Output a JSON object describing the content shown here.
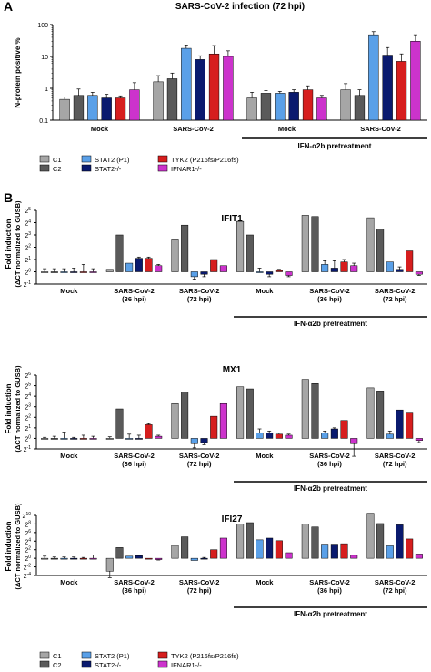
{
  "panels": {
    "A": "A",
    "B": "B"
  },
  "colors": {
    "C1": "#a6a6a6",
    "C2": "#5a5a5a",
    "STAT2 (P1)": "#5aa0e8",
    "STAT2-/-": "#0a1a6e",
    "TYK2 (P216fs/P216fs)": "#d61e1e",
    "IFNAR1-/-": "#cc33cc"
  },
  "legend": [
    "C1",
    "C2",
    "STAT2 (P1)",
    "STAT2-/-",
    "TYK2 (P216fs/P216fs)",
    "IFNAR1-/-"
  ],
  "chart_data": [
    {
      "type": "bar",
      "scale": "log10",
      "title": "SARS-CoV-2 infection (72 hpi)",
      "ylabel": "N-protein positive %",
      "yticks": [
        {
          "v": 0.1,
          "t": "0.1"
        },
        {
          "v": 1,
          "t": "1"
        },
        {
          "v": 10,
          "t": "10"
        },
        {
          "v": 100,
          "t": "100"
        }
      ],
      "ylim": [
        0.1,
        100
      ],
      "groups": [
        "Mock",
        "SARS-CoV-2",
        "Mock",
        "SARS-CoV-2"
      ],
      "pretreatment": "IFN-α2b pretreatment",
      "series": [
        {
          "name": "C1",
          "values": [
            0.45,
            1.6,
            0.5,
            0.9
          ],
          "errors": [
            0.08,
            0.9,
            0.25,
            0.5
          ]
        },
        {
          "name": "C2",
          "values": [
            0.6,
            2.0,
            0.7,
            0.6
          ],
          "errors": [
            0.35,
            1.0,
            0.15,
            0.3
          ]
        },
        {
          "name": "STAT2 (P1)",
          "values": [
            0.6,
            18,
            0.7,
            48
          ],
          "errors": [
            0.15,
            5,
            0.1,
            12
          ]
        },
        {
          "name": "STAT2-/-",
          "values": [
            0.5,
            8,
            0.75,
            11
          ],
          "errors": [
            0.15,
            2.5,
            0.15,
            8
          ]
        },
        {
          "name": "TYK2 (P216fs/P216fs)",
          "values": [
            0.5,
            12,
            0.9,
            7
          ],
          "errors": [
            0.08,
            10,
            0.3,
            5
          ]
        },
        {
          "name": "IFNAR1-/-",
          "values": [
            0.9,
            10,
            0.5,
            30
          ],
          "errors": [
            0.6,
            5,
            0.1,
            18
          ]
        }
      ]
    },
    {
      "type": "bar",
      "scale": "log2",
      "title": "IFIT1",
      "ylabel": "Fold induction (ΔCT normalized to GUSB)",
      "ylim": [
        -1,
        5
      ],
      "groups": [
        "Mock",
        "SARS-CoV-2 (36 hpi)",
        "SARS-CoV-2 (72 hpi)",
        "Mock",
        "SARS-CoV-2 (36 hpi)",
        "SARS-CoV-2 (72 hpi)"
      ],
      "pretreatment": "IFN-α2b pretreatment",
      "series": [
        {
          "name": "C1",
          "values": [
            0,
            0.2,
            2.6,
            4.1,
            4.6,
            4.4
          ],
          "errors": [
            0.25,
            0,
            0,
            0,
            0,
            0
          ]
        },
        {
          "name": "C2",
          "values": [
            0,
            3.0,
            3.8,
            3.0,
            4.5,
            3.5
          ],
          "errors": [
            0.25,
            0,
            0,
            0,
            0,
            0
          ]
        },
        {
          "name": "STAT2 (P1)",
          "values": [
            0,
            0.7,
            -0.4,
            0,
            0.6,
            0.8
          ],
          "errors": [
            0.25,
            0,
            0.2,
            0.3,
            0.3,
            0
          ]
        },
        {
          "name": "STAT2-/-",
          "values": [
            0,
            1.1,
            -0.2,
            -0.2,
            0.3,
            0.2
          ],
          "errors": [
            0.3,
            0.1,
            0.2,
            0.2,
            0.6,
            0.2
          ]
        },
        {
          "name": "TYK2 (P216fs/P216fs)",
          "values": [
            0,
            1.1,
            1.0,
            0.1,
            0.8,
            1.7
          ],
          "errors": [
            0.6,
            0.1,
            0,
            0.1,
            0.2,
            0
          ]
        },
        {
          "name": "IFNAR1-/-",
          "values": [
            0,
            0.5,
            0.5,
            -0.3,
            0.5,
            -0.2
          ],
          "errors": [
            0.25,
            0.1,
            0,
            0.1,
            0.2,
            0.1
          ]
        }
      ]
    },
    {
      "type": "bar",
      "scale": "log2",
      "title": "MX1",
      "ylabel": "Fold induction (ΔCT normalized to GUSB)",
      "ylim": [
        -1,
        6
      ],
      "groups": [
        "Mock",
        "SARS-CoV-2 (36 hpi)",
        "SARS-CoV-2 (72 hpi)",
        "Mock",
        "SARS-CoV-2 (36 hpi)",
        "SARS-CoV-2 (72 hpi)"
      ],
      "pretreatment": "IFN-α2b pretreatment",
      "series": [
        {
          "name": "C1",
          "values": [
            0,
            0,
            3.3,
            4.9,
            5.6,
            4.8
          ],
          "errors": [
            0.1,
            0.15,
            0,
            0,
            0,
            0
          ]
        },
        {
          "name": "C2",
          "values": [
            0,
            2.8,
            4.4,
            4.7,
            5.2,
            4.5
          ],
          "errors": [
            0.2,
            0,
            0,
            0,
            0,
            0
          ]
        },
        {
          "name": "STAT2 (P1)",
          "values": [
            0,
            0,
            -0.5,
            0.5,
            0.5,
            0.4
          ],
          "errors": [
            0.6,
            0.4,
            0.4,
            0.4,
            0.2,
            0.3
          ]
        },
        {
          "name": "STAT2-/-",
          "values": [
            0,
            0,
            -0.4,
            0.5,
            0.9,
            2.7
          ],
          "errors": [
            0.1,
            0.3,
            0.2,
            0.2,
            0.1,
            0
          ]
        },
        {
          "name": "TYK2 (P216fs/P216fs)",
          "values": [
            0,
            1.3,
            2.1,
            0.4,
            1.7,
            2.4
          ],
          "errors": [
            0.3,
            0.1,
            0,
            0.1,
            0,
            0
          ]
        },
        {
          "name": "IFNAR1-/-",
          "values": [
            0,
            0.2,
            3.3,
            0.3,
            -0.5,
            -0.2
          ],
          "errors": [
            0.2,
            0.1,
            0,
            0.1,
            1.2,
            0.2
          ]
        }
      ]
    },
    {
      "type": "bar",
      "scale": "log2",
      "title": "IFI27",
      "ylabel": "Fold induction (ΔCT normalized to GUSB)",
      "ylim": [
        -4,
        10
      ],
      "groups": [
        "Mock",
        "SARS-CoV-2 (36 hpi)",
        "SARS-CoV-2 (72 hpi)",
        "Mock",
        "SARS-CoV-2 (36 hpi)",
        "SARS-CoV-2 (72 hpi)"
      ],
      "pretreatment": "IFN-α2b pretreatment",
      "series": [
        {
          "name": "C1",
          "values": [
            0,
            -3.0,
            3.0,
            8.0,
            8.0,
            10.5
          ],
          "errors": [
            0.5,
            1.5,
            0,
            0,
            0,
            0
          ]
        },
        {
          "name": "C2",
          "values": [
            0,
            2.5,
            5.0,
            8.3,
            7.3,
            8.1
          ],
          "errors": [
            0.3,
            0,
            0,
            0,
            0,
            0
          ]
        },
        {
          "name": "STAT2 (P1)",
          "values": [
            0,
            0.5,
            -0.5,
            4.3,
            3.3,
            2.9
          ],
          "errors": [
            0.3,
            0,
            0,
            0,
            0,
            0
          ]
        },
        {
          "name": "STAT2-/-",
          "values": [
            0,
            0.6,
            0,
            4.7,
            3.3,
            7.8
          ],
          "errors": [
            0.3,
            0.1,
            0.2,
            0,
            0,
            0
          ]
        },
        {
          "name": "TYK2 (P216fs/P216fs)",
          "values": [
            0,
            0,
            2.0,
            4.1,
            3.4,
            4.5
          ],
          "errors": [
            0.2,
            0,
            0,
            0,
            0,
            0
          ]
        },
        {
          "name": "IFNAR1-/-",
          "values": [
            0,
            -0.3,
            4.7,
            1.3,
            0.7,
            1.0
          ],
          "errors": [
            0.8,
            0.1,
            0,
            0,
            0,
            0
          ]
        }
      ]
    }
  ]
}
